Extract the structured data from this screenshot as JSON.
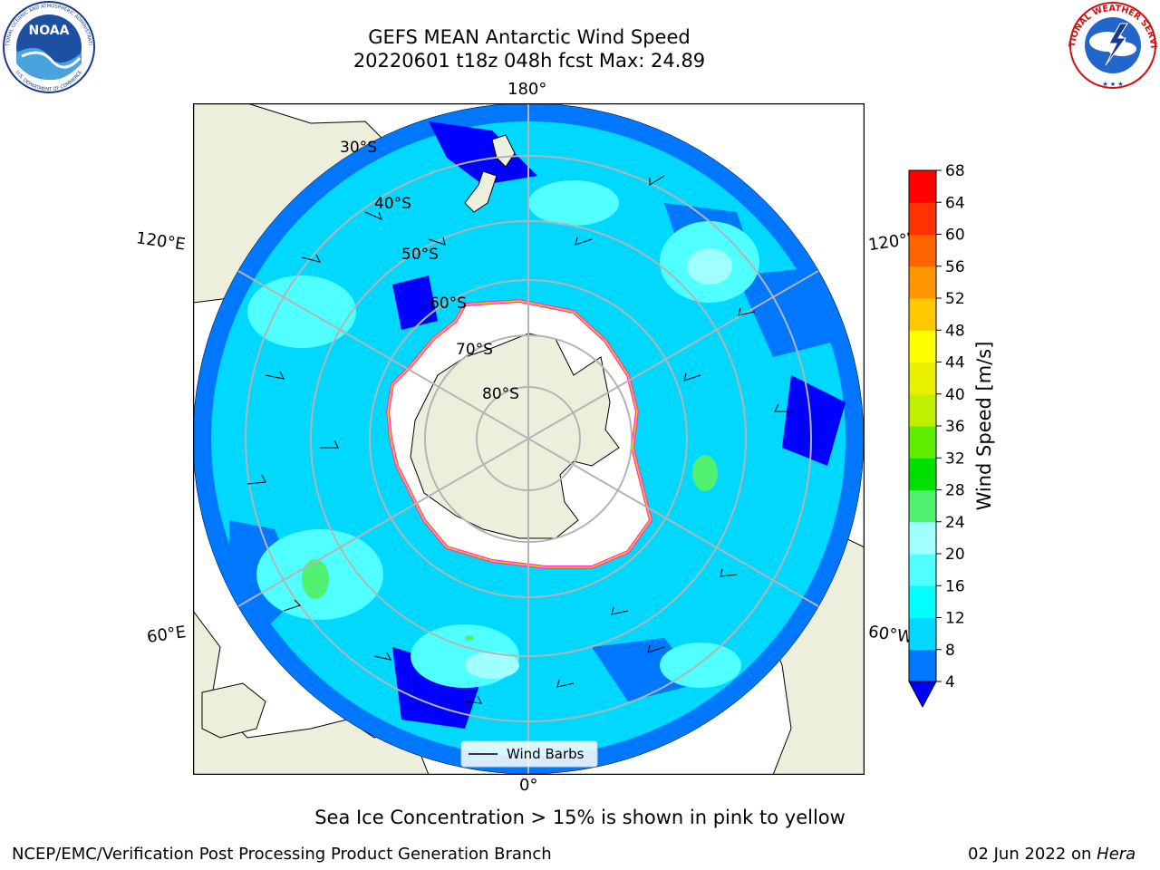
{
  "title_line1": "GEFS MEAN Antarctic Wind Speed",
  "title_line2": "20220601 t18z 048h fcst   Max: 24.89",
  "subtitle": "Sea Ice Concentration > 15% is shown in pink to yellow",
  "footer_left": "NCEP/EMC/Verification Post Processing Product Generation Branch",
  "footer_right_date": "02 Jun 2022 on ",
  "footer_right_host": "Hera",
  "logos": {
    "noaa_text": "NOAA",
    "noaa_ring": "NATIONAL OCEANIC AND ATMOSPHERIC ADMINISTRATION",
    "noaa_ring_bottom": "U.S. DEPARTMENT OF COMMERCE",
    "nws_ring": "NATIONAL WEATHER SERVICE"
  },
  "map": {
    "projection": "south polar stereographic",
    "lat_labels": [
      "30°S",
      "40°S",
      "50°S",
      "60°S",
      "70°S",
      "80°S"
    ],
    "lon_labels": {
      "top": "180°",
      "bottom": "0°",
      "upper_left": "120°E",
      "lower_left": "60°E",
      "upper_right": "120°W",
      "lower_right": "60°W"
    },
    "legend_label": "Wind Barbs",
    "colors": {
      "land": "#eeeedc",
      "ice": "#ffffff",
      "ice_edge": "#ff33cc",
      "grid": "#b4b4b4"
    }
  },
  "colorbar": {
    "label": "Wind Speed [m/s]",
    "ticks": [
      "4",
      "8",
      "12",
      "16",
      "20",
      "24",
      "28",
      "32",
      "36",
      "40",
      "44",
      "48",
      "52",
      "56",
      "60",
      "64",
      "68"
    ],
    "colors": [
      "#0000ff",
      "#0077ff",
      "#00d8ff",
      "#00ffff",
      "#50ffff",
      "#a0ffff",
      "#50f070",
      "#00e000",
      "#60ee00",
      "#c0f000",
      "#e8f000",
      "#ffff00",
      "#ffc800",
      "#ff9600",
      "#ff6400",
      "#ff3200",
      "#ff0000"
    ],
    "under_color": "#0000ff"
  }
}
